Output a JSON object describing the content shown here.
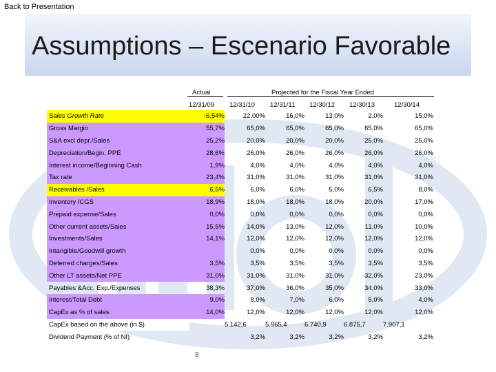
{
  "back_link": "Back to Presentation",
  "title": "Assumptions – Escenario Favorable",
  "header": {
    "actual": "Actual",
    "projected": "Projected for the Fiscal Year Ended",
    "dates": [
      "12/31/09",
      "12/31/10",
      "12/31/11",
      "12/30/12",
      "12/30/13",
      "12/30/14"
    ]
  },
  "colors": {
    "yellow": "#ffff00",
    "purple": "#cc99ff",
    "title_band": "#c9d7ee",
    "watermark": "#dfe8f3"
  },
  "rows": [
    {
      "label": "Sales Growth Rate",
      "style": "yellow",
      "italic": true,
      "values": [
        "-6,54%",
        "22,00%",
        "16,0%",
        "13,0%",
        "2,0%",
        "15,0%"
      ]
    },
    {
      "label": "Gross Margin",
      "style": "purple",
      "values": [
        "55,7%",
        "65,0%",
        "65,0%",
        "65,0%",
        "65,0%",
        "65,0%"
      ]
    },
    {
      "label": "S&A excl depr./Sales",
      "style": "purple",
      "values": [
        "25,2%",
        "20,0%",
        "20,0%",
        "20,0%",
        "25,0%",
        "25,0%"
      ]
    },
    {
      "label": "Depreciation/Begin. PPE",
      "style": "purple",
      "values": [
        "28,6%",
        "26,0%",
        "26,0%",
        "26,0%",
        "26,0%",
        "26,0%"
      ]
    },
    {
      "label": "Interest income/Beginning Cash",
      "style": "purple",
      "values": [
        "1,9%",
        "4,0%",
        "4,0%",
        "4,0%",
        "4,0%",
        "4,0%"
      ]
    },
    {
      "label": "Tax rate",
      "style": "purple",
      "values": [
        "23,4%",
        "31,0%",
        "31,0%",
        "31,0%",
        "31,0%",
        "31,0%"
      ]
    },
    {
      "label": "Receivables /Sales",
      "style": "yellow",
      "values": [
        "6,5%",
        "6,0%",
        "6,0%",
        "5,0%",
        "6,5%",
        "8,0%"
      ]
    },
    {
      "label": "Inventory /CGS",
      "style": "purple",
      "values": [
        "18,9%",
        "18,0%",
        "18,0%",
        "18,0%",
        "20,0%",
        "17,0%"
      ]
    },
    {
      "label": "Prepaid expense/Sales",
      "style": "purple",
      "values": [
        "0,0%",
        "0,0%",
        "0,0%",
        "0,0%",
        "0,0%",
        "0,0%"
      ]
    },
    {
      "label": "Other current assets/Sales",
      "style": "purple",
      "values": [
        "15,5%",
        "14,0%",
        "13,0%",
        "12,0%",
        "11,0%",
        "10,0%"
      ]
    },
    {
      "label": "Investments/Sales",
      "style": "purple",
      "values": [
        "14,1%",
        "12,0%",
        "12,0%",
        "12,0%",
        "12,0%",
        "12,0%"
      ]
    },
    {
      "label": "Intangible/Goodwill growth",
      "style": "purple",
      "values": [
        "",
        "0,0%",
        "0,0%",
        "0,0%",
        "0,0%",
        "0,0%"
      ]
    },
    {
      "label": "Deferred charges/Sales",
      "style": "purple",
      "values": [
        "3,5%",
        "3,5%",
        "3,5%",
        "3,5%",
        "3,5%",
        "3,5%"
      ]
    },
    {
      "label": "Other LT assets/Net PPE",
      "style": "purple",
      "values": [
        "31,0%",
        "31,0%",
        "31,0%",
        "31,0%",
        "32,0%",
        "23,0%"
      ]
    },
    {
      "label": "Payables &Acc. Exp./Expenses",
      "style": "white",
      "values": [
        "38,3%",
        "37,0%",
        "36,0%",
        "35,0%",
        "34,0%",
        "33,0%"
      ]
    },
    {
      "label": "Interest/Total Debt",
      "style": "purple",
      "values": [
        "9,0%",
        "8,0%",
        "7,0%",
        "6,0%",
        "5,0%",
        "4,0%"
      ]
    },
    {
      "label": "CapEx as % of sales",
      "style": "purple",
      "values": [
        "14,0%",
        "12,0%",
        "12,0%",
        "12,0%",
        "12,0%",
        "12,0%"
      ]
    }
  ],
  "capex_row": {
    "label": "CapEx based on the above (in $)",
    "values": [
      "5.142,6",
      "5.965,4",
      "6.740,9",
      "6.875,7",
      "7.907,1"
    ]
  },
  "dividend_row": {
    "label": "Dividend Payment (% of NI)",
    "values": [
      "",
      "3,2%",
      "3,2%",
      "3,2%",
      "3,2%",
      "3,2%"
    ]
  },
  "page_number": "8"
}
